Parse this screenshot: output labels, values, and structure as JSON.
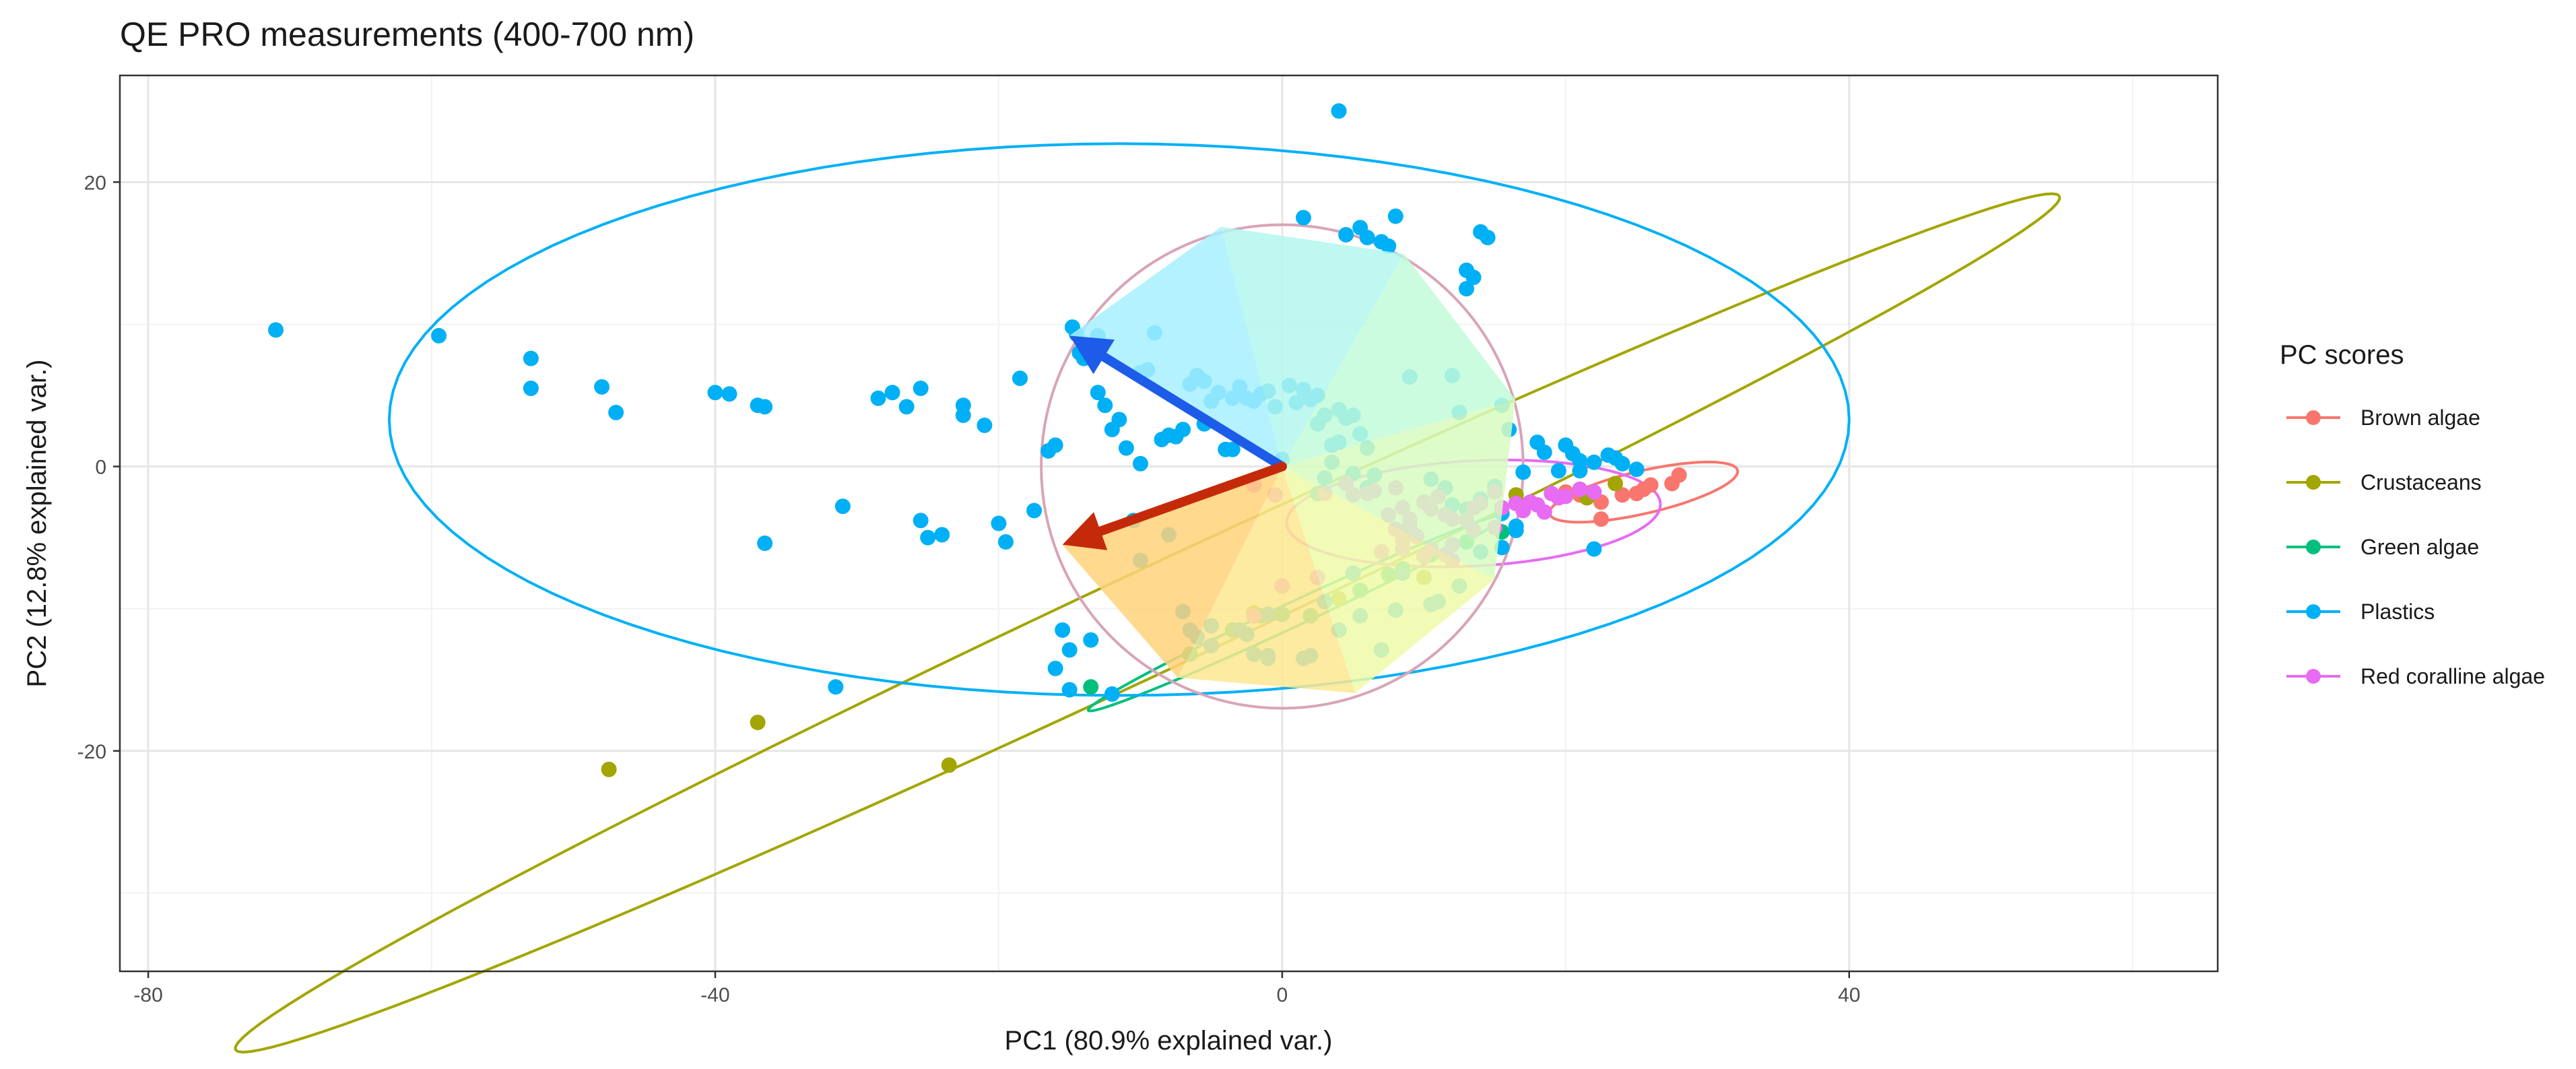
{
  "chart_data": {
    "type": "scatter",
    "title": "QE PRO measurements (400-700 nm)",
    "xlabel": "PC1 (80.9% explained var.)",
    "ylabel": "PC2 (12.8% explained var.)",
    "xlim": [
      -82,
      66
    ],
    "ylim": [
      -35.5,
      27.5
    ],
    "x_ticks": [
      -80,
      -40,
      0,
      40
    ],
    "y_ticks": [
      -20,
      0,
      20
    ],
    "x_tick_labels": [
      "-80",
      "-40",
      "0",
      "40"
    ],
    "y_tick_labels": [
      "-20",
      "0",
      "20"
    ],
    "grid": true,
    "legend": {
      "title": "PC scores",
      "position": "right"
    },
    "colors": {
      "Brown algae": "#F8766D",
      "Crustaceans": "#A3A500",
      "Green algae": "#00BF7D",
      "Plastics": "#00B0F6",
      "Red coralline algae": "#E76BF3",
      "correlation_circle": "#D8A4B8"
    },
    "correlation_circle": {
      "center": [
        0,
        0
      ],
      "radius": 17
    },
    "loading_arrows": [
      {
        "label": "",
        "x": -15,
        "y": 9.2,
        "color": "#1D5CE8"
      },
      {
        "label": "",
        "x": -15.5,
        "y": -5.5,
        "color": "#C42A0A"
      }
    ],
    "series": [
      {
        "name": "Brown algae",
        "points": [
          [
            20,
            -1.8
          ],
          [
            21,
            -2.0
          ],
          [
            22.5,
            -2.5
          ],
          [
            22.5,
            -3.7
          ],
          [
            24,
            -2.0
          ],
          [
            25,
            -1.9
          ],
          [
            26,
            -1.3
          ],
          [
            27.5,
            -1.2
          ],
          [
            28,
            -0.6
          ],
          [
            25.5,
            -1.6
          ]
        ],
        "ellipse": {
          "cx": 25.5,
          "cy": -1.8,
          "rx": 6.8,
          "ry": 1.5,
          "angle": 13
        }
      },
      {
        "name": "Crustaceans",
        "points": [
          [
            -47.5,
            -21.3
          ],
          [
            -37,
            -18
          ],
          [
            -23.5,
            -21
          ],
          [
            4,
            -9.3
          ],
          [
            9,
            -4.2
          ],
          [
            16.5,
            -2
          ],
          [
            21.5,
            -2.2
          ],
          [
            23.5,
            -1.2
          ],
          [
            -2,
            -10.3
          ],
          [
            10,
            -7.8
          ]
        ],
        "ellipse": {
          "cx": -9.5,
          "cy": -11,
          "rx": 71,
          "ry": 3.6,
          "angle": 25
        }
      },
      {
        "name": "Green algae",
        "points": [
          [
            -13.5,
            -15.5
          ],
          [
            -6.5,
            -13.2
          ],
          [
            -3.5,
            -11.5
          ],
          [
            -1.5,
            -10.5
          ],
          [
            0,
            -10.4
          ],
          [
            2,
            -10.5
          ],
          [
            5.5,
            -8.7
          ],
          [
            7.5,
            -7.6
          ],
          [
            10.5,
            -6.2
          ],
          [
            13,
            -5.3
          ],
          [
            15.5,
            -4.6
          ],
          [
            8.5,
            -7.2
          ]
        ],
        "ellipse": {
          "cx": 1,
          "cy": -10.3,
          "rx": 16.2,
          "ry": 0.85,
          "angle": 25
        }
      },
      {
        "name": "Plastics",
        "points": [
          [
            -71,
            9.6
          ],
          [
            -59.5,
            9.2
          ],
          [
            -53,
            7.6
          ],
          [
            -53,
            5.5
          ],
          [
            -48,
            5.6
          ],
          [
            -47,
            3.8
          ],
          [
            -40,
            5.2
          ],
          [
            -39,
            5.1
          ],
          [
            -37,
            4.3
          ],
          [
            -36.5,
            4.2
          ],
          [
            -36.5,
            -5.4
          ],
          [
            -31,
            -2.8
          ],
          [
            -28.5,
            4.8
          ],
          [
            -27.5,
            5.2
          ],
          [
            -26.5,
            4.2
          ],
          [
            -25.5,
            5.5
          ],
          [
            -25.5,
            -3.8
          ],
          [
            -25,
            -5
          ],
          [
            -24,
            -4.8
          ],
          [
            -22.5,
            4.3
          ],
          [
            -22.5,
            3.6
          ],
          [
            -21,
            2.9
          ],
          [
            -20,
            -4
          ],
          [
            -19.5,
            -5.3
          ],
          [
            -18.5,
            6.2
          ],
          [
            -17.5,
            -3.1
          ],
          [
            -16.5,
            1.1
          ],
          [
            -16,
            1.5
          ],
          [
            -15.5,
            -11.5
          ],
          [
            -15,
            -12.9
          ],
          [
            -15,
            -15.7
          ],
          [
            -16,
            -14.2
          ],
          [
            -13.5,
            -12.2
          ],
          [
            -12,
            -16
          ],
          [
            -10.5,
            -3.8
          ],
          [
            -10,
            -6.6
          ],
          [
            -8,
            -4.8
          ],
          [
            -7,
            -10.2
          ],
          [
            -6.5,
            -11.5
          ],
          [
            -6,
            -12
          ],
          [
            -5,
            -12.6
          ],
          [
            -2.5,
            -11.8
          ],
          [
            -2,
            -13.2
          ],
          [
            -1,
            -13.5
          ],
          [
            1.5,
            -13.5
          ],
          [
            -31.5,
            -15.5
          ],
          [
            -14.8,
            9.8
          ],
          [
            -14.5,
            9.3
          ],
          [
            -14.3,
            8
          ],
          [
            -14,
            7.6
          ],
          [
            -13,
            9.2
          ],
          [
            -13,
            5.2
          ],
          [
            -12.5,
            4.3
          ],
          [
            -12,
            2.6
          ],
          [
            -11.5,
            3.3
          ],
          [
            -11,
            1.3
          ],
          [
            -10,
            0.2
          ],
          [
            -10,
            6.6
          ],
          [
            -9.5,
            6.8
          ],
          [
            -9,
            9.4
          ],
          [
            -8.5,
            1.9
          ],
          [
            -8,
            2.2
          ],
          [
            -7.5,
            2.1
          ],
          [
            -7,
            2.6
          ],
          [
            -6.5,
            5.8
          ],
          [
            -6,
            6.4
          ],
          [
            -5.5,
            3
          ],
          [
            -5.5,
            6
          ],
          [
            -5,
            4.6
          ],
          [
            -4.5,
            5.2
          ],
          [
            -4,
            1.2
          ],
          [
            -3.5,
            1.2
          ],
          [
            -3.5,
            4.8
          ],
          [
            -3,
            5.6
          ],
          [
            -2.5,
            4.8
          ],
          [
            -2,
            4.6
          ],
          [
            -1.5,
            5.1
          ],
          [
            -1,
            5.3
          ],
          [
            -0.5,
            4.2
          ],
          [
            0,
            0.5
          ],
          [
            0.5,
            5.7
          ],
          [
            1,
            4.5
          ],
          [
            1.5,
            5.4
          ],
          [
            2,
            4.7
          ],
          [
            2.5,
            5
          ],
          [
            2.5,
            3
          ],
          [
            3,
            3.6
          ],
          [
            3.5,
            1.5
          ],
          [
            4,
            1.7
          ],
          [
            4,
            4
          ],
          [
            4.5,
            3.4
          ],
          [
            5,
            3.6
          ],
          [
            5.5,
            2.3
          ],
          [
            6,
            -1.5
          ],
          [
            6,
            1.3
          ],
          [
            1.5,
            17.5
          ],
          [
            4,
            25
          ],
          [
            4.5,
            16.3
          ],
          [
            5.5,
            16.8
          ],
          [
            6,
            16.1
          ],
          [
            7,
            15.8
          ],
          [
            7.5,
            15.5
          ],
          [
            8,
            17.6
          ],
          [
            9,
            6.3
          ],
          [
            12,
            6.4
          ],
          [
            12.5,
            3.8
          ],
          [
            13,
            13.8
          ],
          [
            13,
            12.5
          ],
          [
            13.5,
            13.3
          ],
          [
            14,
            16.5
          ],
          [
            14.5,
            16.1
          ],
          [
            15,
            -1.4
          ],
          [
            15.5,
            4.3
          ],
          [
            16,
            2.6
          ],
          [
            15.5,
            -3.3
          ],
          [
            16.5,
            -4.2
          ],
          [
            17,
            -0.4
          ],
          [
            18,
            1.7
          ],
          [
            18.5,
            1
          ],
          [
            19.5,
            -0.3
          ],
          [
            20,
            1.5
          ],
          [
            20.5,
            0.9
          ],
          [
            21,
            -0.3
          ],
          [
            21,
            0.4
          ],
          [
            22,
            0.3
          ],
          [
            23,
            0.8
          ],
          [
            23.5,
            0.6
          ],
          [
            24,
            0.2
          ],
          [
            25,
            -0.2
          ],
          [
            22,
            -5.8
          ],
          [
            8.5,
            -7.5
          ],
          [
            5,
            -7.5
          ],
          [
            3,
            -9.5
          ],
          [
            -1,
            -10.4
          ],
          [
            -3,
            -11.5
          ],
          [
            -5,
            -11.2
          ],
          [
            -1,
            -13.3
          ],
          [
            2,
            -13.3
          ],
          [
            7,
            -12.9
          ],
          [
            4,
            -11.5
          ],
          [
            5.5,
            -10.5
          ],
          [
            8,
            -10.1
          ],
          [
            10.5,
            -9.7
          ],
          [
            11,
            -9.5
          ],
          [
            12.5,
            -8.4
          ],
          [
            14,
            -6
          ],
          [
            15.5,
            -5.7
          ],
          [
            16.5,
            -4.5
          ],
          [
            10.5,
            -0.9
          ],
          [
            11.5,
            -1.5
          ],
          [
            14,
            -2.3
          ],
          [
            13,
            -3
          ],
          [
            12,
            -2.7
          ],
          [
            6.5,
            -0.6
          ],
          [
            5,
            -0.5
          ],
          [
            3.5,
            0.3
          ],
          [
            3,
            -0.8
          ],
          [
            2.5,
            -1.9
          ]
        ],
        "ellipse": {
          "cx": -11.5,
          "cy": 3.3,
          "rx": 51.5,
          "ry": 19.4,
          "angle": 0
        }
      },
      {
        "name": "Red coralline algae",
        "points": [
          [
            -2,
            -1.3
          ],
          [
            -0.5,
            -2
          ],
          [
            3,
            -1.9
          ],
          [
            4.5,
            -1.2
          ],
          [
            5,
            -2
          ],
          [
            6,
            -1.9
          ],
          [
            6.5,
            -1.7
          ],
          [
            8,
            -1.5
          ],
          [
            8.5,
            -2.9
          ],
          [
            9,
            -4.3
          ],
          [
            9.5,
            -4.9
          ],
          [
            10,
            -2.5
          ],
          [
            10.5,
            -3
          ],
          [
            11,
            -2.1
          ],
          [
            11.5,
            -3.4
          ],
          [
            12,
            -3.7
          ],
          [
            13,
            -3.8
          ],
          [
            13.5,
            -2.9
          ],
          [
            14,
            -2.6
          ],
          [
            15,
            -1.8
          ],
          [
            15.5,
            -2.9
          ],
          [
            16.5,
            -2.6
          ],
          [
            17,
            -3.1
          ],
          [
            17.5,
            -2.5
          ],
          [
            18,
            -2.7
          ],
          [
            18.5,
            -3.2
          ],
          [
            19,
            -1.9
          ],
          [
            19.5,
            -2.2
          ],
          [
            20,
            -2.1
          ],
          [
            21,
            -1.6
          ],
          [
            22,
            -1.8
          ],
          [
            9,
            -3.7
          ],
          [
            7.5,
            -3.4
          ],
          [
            8,
            -4.4
          ],
          [
            8.5,
            -5.2
          ],
          [
            8.5,
            -5.8
          ],
          [
            10,
            -6.3
          ],
          [
            11.5,
            -6.2
          ],
          [
            12,
            -6.6
          ],
          [
            0,
            -8.4
          ],
          [
            -2,
            -10.5
          ],
          [
            2.5,
            -7.8
          ],
          [
            7,
            -6
          ],
          [
            10.5,
            -5.8
          ],
          [
            12,
            -5.5
          ],
          [
            13.5,
            -4.5
          ],
          [
            15,
            -4.3
          ]
        ],
        "ellipse": {
          "cx": 13.5,
          "cy": -3.3,
          "rx": 13.2,
          "ry": 3.7,
          "angle": 3
        }
      }
    ]
  }
}
